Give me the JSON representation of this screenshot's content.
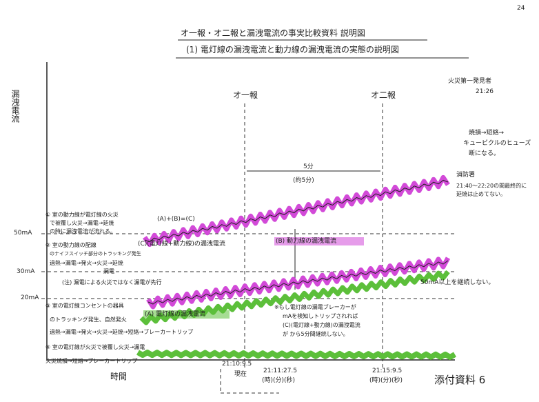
{
  "page_number": "24",
  "header": {
    "title": "オ一報・オ二報と漏洩電流の事実比較資料 説明図",
    "subtitle": "(1) 電灯線の漏洩電流と動力線の漏洩電流の実態の説明図"
  },
  "axis": {
    "y_label": "漏洩電流",
    "x_label": "時間",
    "levels": [
      "50mA",
      "30mA",
      "20mA"
    ]
  },
  "markers": {
    "first_report": "オ一報",
    "second_report": "オ二報",
    "interval": "5分",
    "interval_note": "(約5分)"
  },
  "right_notes": {
    "discoverer": "火災第一発見者",
    "discoverer_time": "21:26",
    "burn_1": "焼損→短絡→",
    "burn_2": "キュービクルのヒューズ",
    "burn_3": "断になる。",
    "fire_dept": "消防署",
    "fire_dept_1": "21:40〜22:20の間最終的に",
    "fire_dept_2": "延焼は止めてない。"
  },
  "curves": {
    "c_formula": "(A)+(B)=(C)",
    "c_label": "(C)(電灯線+動力線)の漏洩電流",
    "b_label": "(B) 動力線の漏洩電流",
    "a_label": "(A) 電灯線の漏洩電流",
    "limit": "50mA以上を継続しない。",
    "note": "(注) 漏電による火災ではなく漏電が先行"
  },
  "left_notes": {
    "n1_1": "① 室の動力線が電灯線の火災",
    "n1_2": "で被覆し火災→漏電→延焼",
    "n1_3": "の時に漏洩電流が流れる。",
    "n2_1": "② 室の動力線の配線",
    "n2_2": "のナイフスイッチ部分のトラッキング発生",
    "n2_3": "過熱→漏電→発火→火災→延焼",
    "n2_4": "漏電",
    "n3_1": "③ 室の電灯線コンセントの器具",
    "n3_2": "のトラッキング発生、自然発火",
    "n3_3": "過熱→漏電→発火→火災→延焼→短絡→ブレーカートリップ",
    "n4_1": "④ 室の電灯線が火災で被覆し火災→漏電",
    "n5": "火災焼損→短絡→ブレーカートリップ"
  },
  "bottom_notes": {
    "hypo_1": "※もし電灯線の漏電ブレーカーが",
    "hypo_2": "mAを検知しトリップされれば",
    "hypo_3": "(C)(電灯線+動力線)の漏洩電流",
    "hypo_4": "が から5分間継続しない。",
    "t1": "21:10:9.5",
    "t1_note": "現在",
    "t2": "21:11:27.5",
    "t2_note": "(時)(分)(秒)",
    "t3": "21:15:9.5",
    "t3_note": "(時)(分)(秒)",
    "doc": "添付資料 6"
  }
}
